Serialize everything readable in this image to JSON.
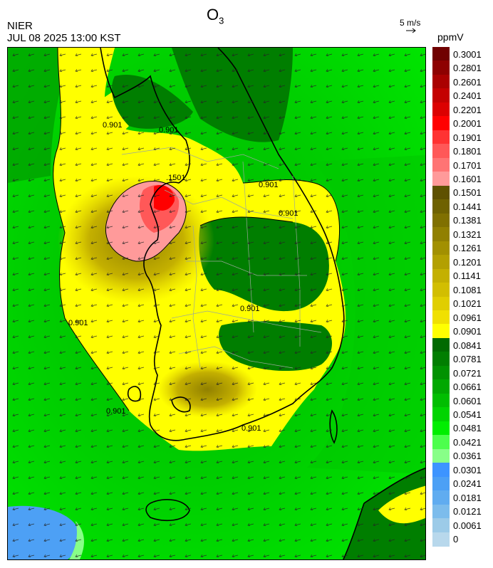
{
  "header": {
    "source": "NIER",
    "timestamp": "JUL 08 2025 13:00 KST",
    "title_base": "O",
    "title_sub": "3"
  },
  "vector_key": {
    "label": "5 m/s"
  },
  "colorbar": {
    "unit": "ppmV",
    "levels": [
      {
        "label": "0.3001",
        "color": "#700000"
      },
      {
        "label": "0.2801",
        "color": "#8e0000"
      },
      {
        "label": "0.2601",
        "color": "#aa0000"
      },
      {
        "label": "0.2401",
        "color": "#c40000"
      },
      {
        "label": "0.2201",
        "color": "#dc0000"
      },
      {
        "label": "0.2001",
        "color": "#ff0000"
      },
      {
        "label": "0.1901",
        "color": "#ff3333"
      },
      {
        "label": "0.1801",
        "color": "#ff5858"
      },
      {
        "label": "0.1701",
        "color": "#ff7474"
      },
      {
        "label": "0.1601",
        "color": "#ff9a9a"
      },
      {
        "label": "0.1501",
        "color": "#5e5100"
      },
      {
        "label": "0.1441",
        "color": "#6f6200"
      },
      {
        "label": "0.1381",
        "color": "#807000"
      },
      {
        "label": "0.1321",
        "color": "#918000"
      },
      {
        "label": "0.1261",
        "color": "#a29000"
      },
      {
        "label": "0.1201",
        "color": "#b3a000"
      },
      {
        "label": "0.1141",
        "color": "#c4b000"
      },
      {
        "label": "0.1081",
        "color": "#d2be00"
      },
      {
        "label": "0.1021",
        "color": "#e0ce00"
      },
      {
        "label": "0.0961",
        "color": "#f0e000"
      },
      {
        "label": "0.0901",
        "color": "#ffff00"
      },
      {
        "label": "0.0841",
        "color": "#006a00"
      },
      {
        "label": "0.0781",
        "color": "#007e00"
      },
      {
        "label": "0.0721",
        "color": "#009200"
      },
      {
        "label": "0.0661",
        "color": "#00a800"
      },
      {
        "label": "0.0601",
        "color": "#00be00"
      },
      {
        "label": "0.0541",
        "color": "#00d400"
      },
      {
        "label": "0.0481",
        "color": "#00ee00"
      },
      {
        "label": "0.0421",
        "color": "#4dff4d"
      },
      {
        "label": "0.0361",
        "color": "#88ff88"
      },
      {
        "label": "0.0301",
        "color": "#3d94ff"
      },
      {
        "label": "0.0241",
        "color": "#4ca0f5"
      },
      {
        "label": "0.0181",
        "color": "#60acf0"
      },
      {
        "label": "0.0121",
        "color": "#7cbcec"
      },
      {
        "label": "0.0061",
        "color": "#9ccbe8"
      },
      {
        "label": "0",
        "color": "#b8d8ec"
      }
    ]
  },
  "contour_labels": [
    {
      "text": "0.901",
      "key": "c1"
    },
    {
      "text": "0.901",
      "key": "c2"
    },
    {
      "text": "0.901",
      "key": "c3"
    },
    {
      "text": "0.901",
      "key": "c4"
    },
    {
      "text": "0.901",
      "key": "c5"
    },
    {
      "text": "0.901",
      "key": "c6"
    },
    {
      "text": "0.901",
      "key": "c7"
    },
    {
      "text": "0.901",
      "key": "c8"
    },
    {
      "text": ".1501",
      "key": "c9"
    }
  ]
}
